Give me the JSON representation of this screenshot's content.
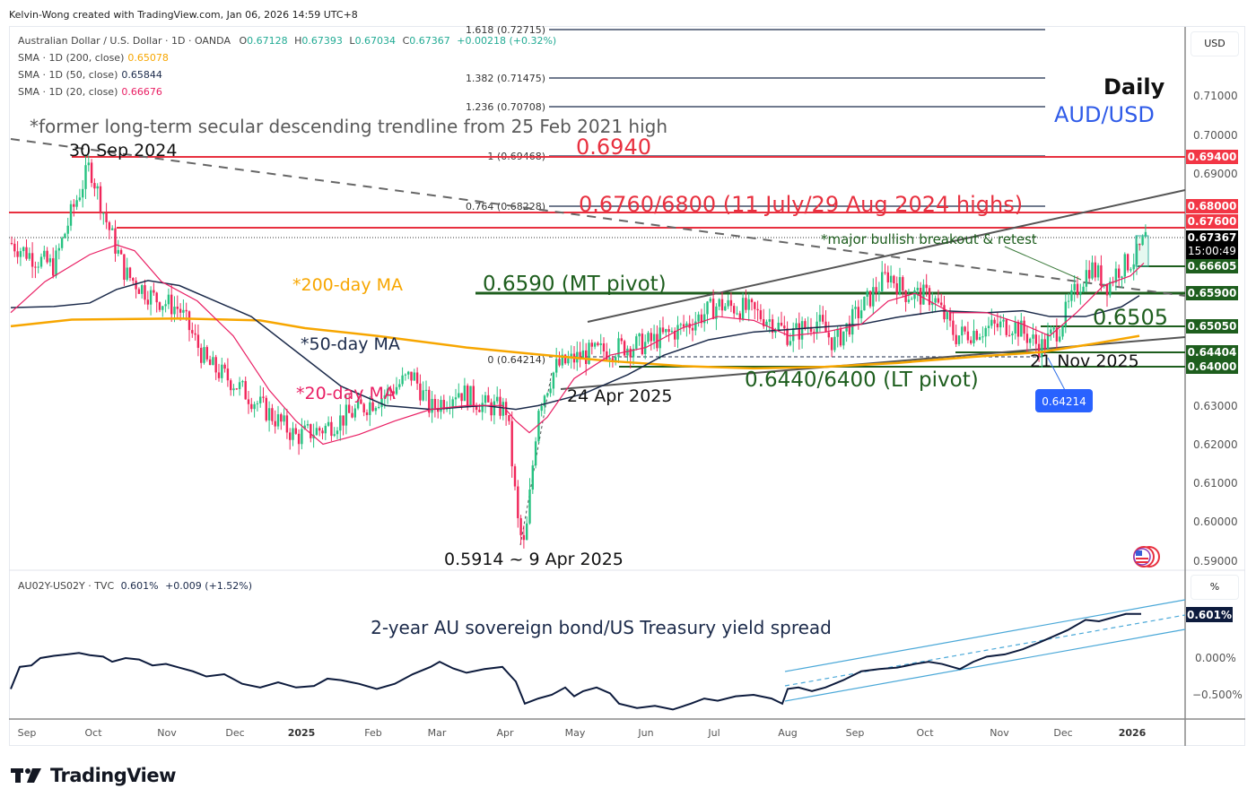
{
  "credit": "Kelvin-Wong created with TradingView.com, Jan 06, 2026 14:59 UTC+8",
  "main_pane": {
    "symbol_line": {
      "name": "Australian Dollar / U.S. Dollar · 1D · OANDA",
      "o_label": "O",
      "o": "0.67128",
      "h_label": "H",
      "h": "0.67393",
      "l_label": "L",
      "l": "0.67034",
      "c_label": "C",
      "c": "0.67367",
      "change": "+0.00218 (+0.32%)"
    },
    "indicators": [
      {
        "label": "SMA · 1D (200, close)",
        "value": "0.65078",
        "color": "#f7a600"
      },
      {
        "label": "SMA · 1D (50, close)",
        "value": "0.65844",
        "color": "#1b2a4a"
      },
      {
        "label": "SMA · 1D (20, close)",
        "value": "0.66676",
        "color": "#e91e63"
      }
    ],
    "title_daily": "Daily",
    "title_pair": "AUD/USD",
    "currency_button": "USD",
    "annotations": {
      "trendline_note": "*former long-term secular descending trendline from 25 Feb 2021 high",
      "peak_label": "30 Sep 2024",
      "level_0694": "0.6940",
      "level_highs": "0.6760/6800 (11 July/29 Aug 2024 highs)",
      "breakout_note": "*major bullish breakout & retest",
      "ma200_label": "*200-day MA",
      "ma50_label": "*50-day MA",
      "ma20_label": "*20-day MA",
      "mt_pivot": "0.6590 (MT pivot)",
      "level_06505": "0.6505",
      "nov_label": "21 Nov 2025",
      "lt_pivot": "0.6440/6400 (LT pivot)",
      "apr24_label": "24 Apr 2025",
      "low_label": "0.5914 ~ 9 Apr 2025",
      "fib_base_tooltip": "0.64214"
    },
    "fib_levels": [
      {
        "label": "1.618 (0.72715)"
      },
      {
        "label": "1.382 (0.71475)"
      },
      {
        "label": "1.236 (0.70708)"
      },
      {
        "label": "1 (0.69468)"
      },
      {
        "label": "0.764 (0.68228)"
      },
      {
        "label": "0 (0.64214)"
      }
    ],
    "y_axis_ticks": [
      "0.71000",
      "0.70000",
      "0.69000",
      "0.63000",
      "0.62000",
      "0.61000",
      "0.60000",
      "0.59000"
    ],
    "price_tags": [
      {
        "value": "0.69400",
        "style": "red"
      },
      {
        "value": "0.68000",
        "style": "red"
      },
      {
        "value": "0.67600",
        "style": "red"
      },
      {
        "value": "0.67367",
        "sub": "15:00:49",
        "style": "black"
      },
      {
        "value": "0.66605",
        "style": "green"
      },
      {
        "value": "0.65900",
        "style": "green"
      },
      {
        "value": "0.65050",
        "style": "green"
      },
      {
        "value": "0.64404",
        "style": "green"
      },
      {
        "value": "0.64000",
        "style": "green"
      }
    ]
  },
  "sub_pane": {
    "legend_symbol": "AU02Y-US02Y · TVC",
    "legend_value": "0.601%",
    "legend_change": "+0.009 (+1.52%)",
    "title": "2-year AU sovereign bond/US Treasury yield spread",
    "unit_button": "%",
    "y_axis_ticks": [
      "0.000%",
      "−0.500%"
    ],
    "last_tag": "0.601%"
  },
  "x_axis": [
    "Sep",
    "Oct",
    "Nov",
    "Dec",
    "2025",
    "Feb",
    "Mar",
    "Apr",
    "May",
    "Jun",
    "Jul",
    "Aug",
    "Sep",
    "Oct",
    "Nov",
    "Dec",
    "2026"
  ],
  "footer": {
    "brand": "TradingView"
  },
  "colors": {
    "bull": "#26c281",
    "bear": "#f0265a",
    "ma200": "#f7a600",
    "ma50": "#1b2a4a",
    "ma20": "#e91e63",
    "resistance": "#e8303f",
    "support": "#1e5e1e",
    "channel": "#555555",
    "spread": "#0d1b3d",
    "spread_channel": "#4aa8d8"
  },
  "chart_data": [
    {
      "type": "candlestick",
      "title": "AUD/USD Daily (OANDA)",
      "xlabel": "",
      "ylabel": "USD",
      "ylim": [
        0.585,
        0.7275
      ],
      "x": [
        "2024-09",
        "2024-10",
        "2024-11",
        "2024-12",
        "2025-01",
        "2025-02",
        "2025-03",
        "2025-04",
        "2025-05",
        "2025-06",
        "2025-07",
        "2025-08",
        "2025-09",
        "2025-10",
        "2025-11",
        "2025-12",
        "2026-01"
      ],
      "series": [
        {
          "name": "Close (approx monthly)",
          "values": [
            0.676,
            0.658,
            0.651,
            0.622,
            0.621,
            0.635,
            0.629,
            0.638,
            0.644,
            0.656,
            0.652,
            0.652,
            0.661,
            0.651,
            0.649,
            0.667,
            0.6737
          ]
        },
        {
          "name": "SMA 200",
          "values": [
            0.66,
            0.661,
            0.662,
            0.661,
            0.656,
            0.651,
            0.647,
            0.642,
            0.641,
            0.64,
            0.639,
            0.64,
            0.642,
            0.645,
            0.648,
            0.65,
            0.65078
          ]
        },
        {
          "name": "SMA 50",
          "values": [
            0.665,
            0.672,
            0.668,
            0.65,
            0.632,
            0.628,
            0.632,
            0.632,
            0.64,
            0.648,
            0.651,
            0.653,
            0.656,
            0.656,
            0.656,
            0.654,
            0.65844
          ]
        },
        {
          "name": "SMA 20",
          "values": [
            0.668,
            0.674,
            0.659,
            0.636,
            0.625,
            0.631,
            0.634,
            0.62,
            0.641,
            0.649,
            0.655,
            0.651,
            0.66,
            0.656,
            0.65,
            0.662,
            0.66676
          ]
        }
      ],
      "key_points": {
        "high_30_sep_2024": 0.6942,
        "low_9_apr_2025": 0.5914,
        "low_24_apr_2025": 0.638,
        "low_21_nov_2025": 0.6421,
        "last": 0.67367
      },
      "horizontal_levels": [
        0.694,
        0.68,
        0.676,
        0.66605,
        0.659,
        0.6505,
        0.64404,
        0.64
      ],
      "fibonacci": {
        "0": 0.64214,
        "0.764": 0.68228,
        "1": 0.69468,
        "1.236": 0.70708,
        "1.382": 0.71475,
        "1.618": 0.72715
      },
      "grid": false
    },
    {
      "type": "line",
      "title": "2-year AU sovereign bond/US Treasury yield spread (AU02Y-US02Y)",
      "ylabel": "%",
      "ylim": [
        -0.8,
        1.1
      ],
      "x": [
        "2024-09",
        "2024-10",
        "2024-11",
        "2024-12",
        "2025-01",
        "2025-02",
        "2025-03",
        "2025-04",
        "2025-05",
        "2025-06",
        "2025-07",
        "2025-08",
        "2025-09",
        "2025-10",
        "2025-11",
        "2025-12",
        "2026-01"
      ],
      "series": [
        {
          "name": "AU02Y-US02Y",
          "values": [
            -0.25,
            -0.12,
            -0.2,
            -0.3,
            -0.42,
            -0.48,
            -0.28,
            -0.22,
            -0.65,
            -0.55,
            -0.68,
            -0.58,
            -0.22,
            -0.12,
            0.02,
            0.45,
            0.601
          ]
        }
      ],
      "last": 0.601
    }
  ]
}
